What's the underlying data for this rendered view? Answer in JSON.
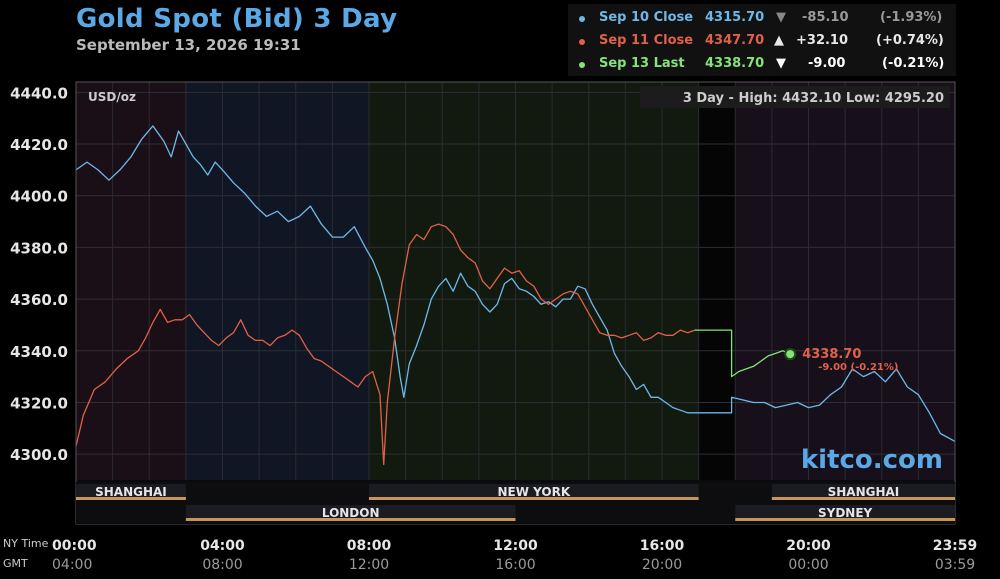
{
  "header": {
    "title": "Gold Spot (Bid) 3 Day",
    "subtitle": "September 13, 2026 19:31"
  },
  "legend": [
    {
      "label": "Sep 10 Close",
      "price": "4315.70",
      "arrow": "▼",
      "change": "-85.10",
      "pct": "(-1.93%)",
      "color": "#6fb7e8",
      "change_color": "#9a9a9a"
    },
    {
      "label": "Sep 11 Close",
      "price": "4347.70",
      "arrow": "▲",
      "change": "+32.10",
      "pct": "(+0.74%)",
      "color": "#e0604a",
      "change_color": "#e8e8e8"
    },
    {
      "label": "Sep 13 Last",
      "price": "4338.70",
      "arrow": "▼",
      "change": "-9.00",
      "pct": "(-0.21%)",
      "color": "#86e27a",
      "change_color": "#ffffff"
    }
  ],
  "panel": {
    "unit": "USD/oz",
    "range_text": "3 Day - High: 4432.10  Low: 4295.20",
    "last_label": "4338.70",
    "last_change": "-9.00 (-0.21%)",
    "watermark": "kitco.com"
  },
  "sessions": {
    "top": [
      {
        "name": "SHANGHAI",
        "start": 0,
        "end": 3
      },
      {
        "name": "NEW YORK",
        "start": 8,
        "end": 17
      },
      {
        "name": "SHANGHAI",
        "start": 19,
        "end": 24
      }
    ],
    "bottom": [
      {
        "name": "LONDON",
        "start": 3,
        "end": 12
      },
      {
        "name": "SYDNEY",
        "start": 18,
        "end": 24
      }
    ],
    "time_labels": [
      "NY Time",
      "GMT"
    ]
  },
  "chart_data": {
    "type": "line",
    "title": "Gold Spot (Bid) 3 Day",
    "ylabel": "USD/oz",
    "xlim": [
      0,
      24
    ],
    "ylim": [
      4290,
      4444
    ],
    "y_ticks": [
      4440,
      4420,
      4400,
      4380,
      4360,
      4340,
      4320,
      4300
    ],
    "y_tick_labels": [
      "4440.0",
      "4420.0",
      "4400.0",
      "4380.0",
      "4360.0",
      "4340.0",
      "4320.0",
      "4300.0"
    ],
    "x_ticks": [
      0,
      4,
      8,
      12,
      16,
      20,
      23.98
    ],
    "x_tick_labels_ny": [
      "00:00",
      "04:00",
      "08:00",
      "12:00",
      "16:00",
      "20:00",
      "23:59"
    ],
    "x_tick_labels_gmt": [
      "04:00",
      "08:00",
      "12:00",
      "16:00",
      "20:00",
      "00:00",
      "03:59"
    ],
    "grid": true,
    "series": [
      {
        "name": "Sep 10 Close",
        "color": "#6fb7e8",
        "points": [
          [
            0,
            4410
          ],
          [
            0.3,
            4413
          ],
          [
            0.6,
            4410
          ],
          [
            0.9,
            4406
          ],
          [
            1.2,
            4410
          ],
          [
            1.5,
            4415
          ],
          [
            1.8,
            4422
          ],
          [
            2.1,
            4427
          ],
          [
            2.4,
            4421
          ],
          [
            2.6,
            4415
          ],
          [
            2.8,
            4425
          ],
          [
            3.0,
            4420
          ],
          [
            3.2,
            4415
          ],
          [
            3.4,
            4412
          ],
          [
            3.6,
            4408
          ],
          [
            3.8,
            4413
          ],
          [
            4.0,
            4410
          ],
          [
            4.3,
            4405
          ],
          [
            4.6,
            4401
          ],
          [
            4.9,
            4396
          ],
          [
            5.2,
            4392
          ],
          [
            5.5,
            4394
          ],
          [
            5.8,
            4390
          ],
          [
            6.1,
            4392
          ],
          [
            6.4,
            4396
          ],
          [
            6.7,
            4389
          ],
          [
            7.0,
            4384
          ],
          [
            7.3,
            4384
          ],
          [
            7.6,
            4388
          ],
          [
            7.9,
            4380
          ],
          [
            8.1,
            4375
          ],
          [
            8.3,
            4368
          ],
          [
            8.5,
            4358
          ],
          [
            8.7,
            4345
          ],
          [
            8.85,
            4330
          ],
          [
            8.95,
            4322
          ],
          [
            9.1,
            4335
          ],
          [
            9.3,
            4342
          ],
          [
            9.5,
            4350
          ],
          [
            9.7,
            4360
          ],
          [
            9.9,
            4365
          ],
          [
            10.1,
            4368
          ],
          [
            10.3,
            4363
          ],
          [
            10.5,
            4370
          ],
          [
            10.7,
            4365
          ],
          [
            10.9,
            4363
          ],
          [
            11.1,
            4358
          ],
          [
            11.3,
            4355
          ],
          [
            11.5,
            4358
          ],
          [
            11.7,
            4366
          ],
          [
            11.9,
            4368
          ],
          [
            12.1,
            4364
          ],
          [
            12.3,
            4363
          ],
          [
            12.5,
            4361
          ],
          [
            12.7,
            4358
          ],
          [
            12.9,
            4359
          ],
          [
            13.1,
            4357
          ],
          [
            13.3,
            4360
          ],
          [
            13.5,
            4360
          ],
          [
            13.7,
            4365
          ],
          [
            13.9,
            4364
          ],
          [
            14.1,
            4358
          ],
          [
            14.3,
            4353
          ],
          [
            14.5,
            4348
          ],
          [
            14.7,
            4339
          ],
          [
            14.9,
            4334
          ],
          [
            15.1,
            4330
          ],
          [
            15.3,
            4325
          ],
          [
            15.5,
            4327
          ],
          [
            15.7,
            4322
          ],
          [
            15.9,
            4322
          ],
          [
            16.1,
            4320
          ],
          [
            16.3,
            4318
          ],
          [
            16.5,
            4317
          ],
          [
            16.7,
            4316
          ],
          [
            16.9,
            4316
          ],
          [
            17.9,
            4316
          ],
          [
            17.9,
            4322
          ],
          [
            18.2,
            4321
          ],
          [
            18.5,
            4320
          ],
          [
            18.8,
            4320
          ],
          [
            19.1,
            4318
          ],
          [
            19.4,
            4319
          ],
          [
            19.7,
            4320
          ],
          [
            20.0,
            4318
          ],
          [
            20.3,
            4319
          ],
          [
            20.6,
            4323
          ],
          [
            20.9,
            4326
          ],
          [
            21.2,
            4333
          ],
          [
            21.5,
            4330
          ],
          [
            21.8,
            4332
          ],
          [
            22.1,
            4328
          ],
          [
            22.4,
            4333
          ],
          [
            22.7,
            4326
          ],
          [
            23.0,
            4323
          ],
          [
            23.3,
            4316
          ],
          [
            23.6,
            4308
          ],
          [
            23.99,
            4305
          ]
        ]
      },
      {
        "name": "Sep 11 Close",
        "color": "#e0604a",
        "points": [
          [
            0,
            4303
          ],
          [
            0.2,
            4315
          ],
          [
            0.5,
            4325
          ],
          [
            0.8,
            4328
          ],
          [
            1.1,
            4333
          ],
          [
            1.4,
            4337
          ],
          [
            1.7,
            4340
          ],
          [
            1.9,
            4345
          ],
          [
            2.1,
            4351
          ],
          [
            2.3,
            4356
          ],
          [
            2.5,
            4351
          ],
          [
            2.7,
            4352
          ],
          [
            2.9,
            4352
          ],
          [
            3.1,
            4354
          ],
          [
            3.3,
            4350
          ],
          [
            3.5,
            4347
          ],
          [
            3.7,
            4344
          ],
          [
            3.9,
            4342
          ],
          [
            4.1,
            4345
          ],
          [
            4.3,
            4347
          ],
          [
            4.5,
            4352
          ],
          [
            4.7,
            4346
          ],
          [
            4.9,
            4344
          ],
          [
            5.1,
            4344
          ],
          [
            5.3,
            4342
          ],
          [
            5.5,
            4345
          ],
          [
            5.7,
            4346
          ],
          [
            5.9,
            4348
          ],
          [
            6.1,
            4346
          ],
          [
            6.3,
            4341
          ],
          [
            6.5,
            4337
          ],
          [
            6.7,
            4336
          ],
          [
            6.9,
            4334
          ],
          [
            7.1,
            4332
          ],
          [
            7.3,
            4330
          ],
          [
            7.5,
            4328
          ],
          [
            7.7,
            4326
          ],
          [
            7.9,
            4330
          ],
          [
            8.1,
            4332
          ],
          [
            8.3,
            4323
          ],
          [
            8.4,
            4296
          ],
          [
            8.5,
            4320
          ],
          [
            8.7,
            4345
          ],
          [
            8.9,
            4366
          ],
          [
            9.1,
            4381
          ],
          [
            9.3,
            4385
          ],
          [
            9.5,
            4383
          ],
          [
            9.7,
            4388
          ],
          [
            9.9,
            4389
          ],
          [
            10.1,
            4388
          ],
          [
            10.3,
            4385
          ],
          [
            10.5,
            4379
          ],
          [
            10.7,
            4376
          ],
          [
            10.9,
            4374
          ],
          [
            11.1,
            4367
          ],
          [
            11.3,
            4364
          ],
          [
            11.5,
            4368
          ],
          [
            11.7,
            4372
          ],
          [
            11.9,
            4370
          ],
          [
            12.1,
            4371
          ],
          [
            12.3,
            4367
          ],
          [
            12.5,
            4365
          ],
          [
            12.7,
            4360
          ],
          [
            12.9,
            4358
          ],
          [
            13.1,
            4360
          ],
          [
            13.3,
            4362
          ],
          [
            13.5,
            4363
          ],
          [
            13.7,
            4362
          ],
          [
            13.9,
            4357
          ],
          [
            14.1,
            4352
          ],
          [
            14.3,
            4347
          ],
          [
            14.5,
            4346
          ],
          [
            14.7,
            4346
          ],
          [
            14.9,
            4345
          ],
          [
            15.1,
            4346
          ],
          [
            15.3,
            4347
          ],
          [
            15.5,
            4344
          ],
          [
            15.7,
            4345
          ],
          [
            15.9,
            4347
          ],
          [
            16.1,
            4346
          ],
          [
            16.3,
            4346
          ],
          [
            16.5,
            4348
          ],
          [
            16.7,
            4347
          ],
          [
            16.9,
            4348
          ]
        ]
      },
      {
        "name": "Sep 13 Last",
        "color": "#86e27a",
        "points": [
          [
            16.9,
            4348
          ],
          [
            17.9,
            4348
          ],
          [
            17.9,
            4330
          ],
          [
            18.1,
            4332
          ],
          [
            18.3,
            4333
          ],
          [
            18.5,
            4334
          ],
          [
            18.7,
            4336
          ],
          [
            18.9,
            4338
          ],
          [
            19.1,
            4339
          ],
          [
            19.3,
            4340
          ],
          [
            19.5,
            4338.7
          ]
        ]
      }
    ]
  }
}
